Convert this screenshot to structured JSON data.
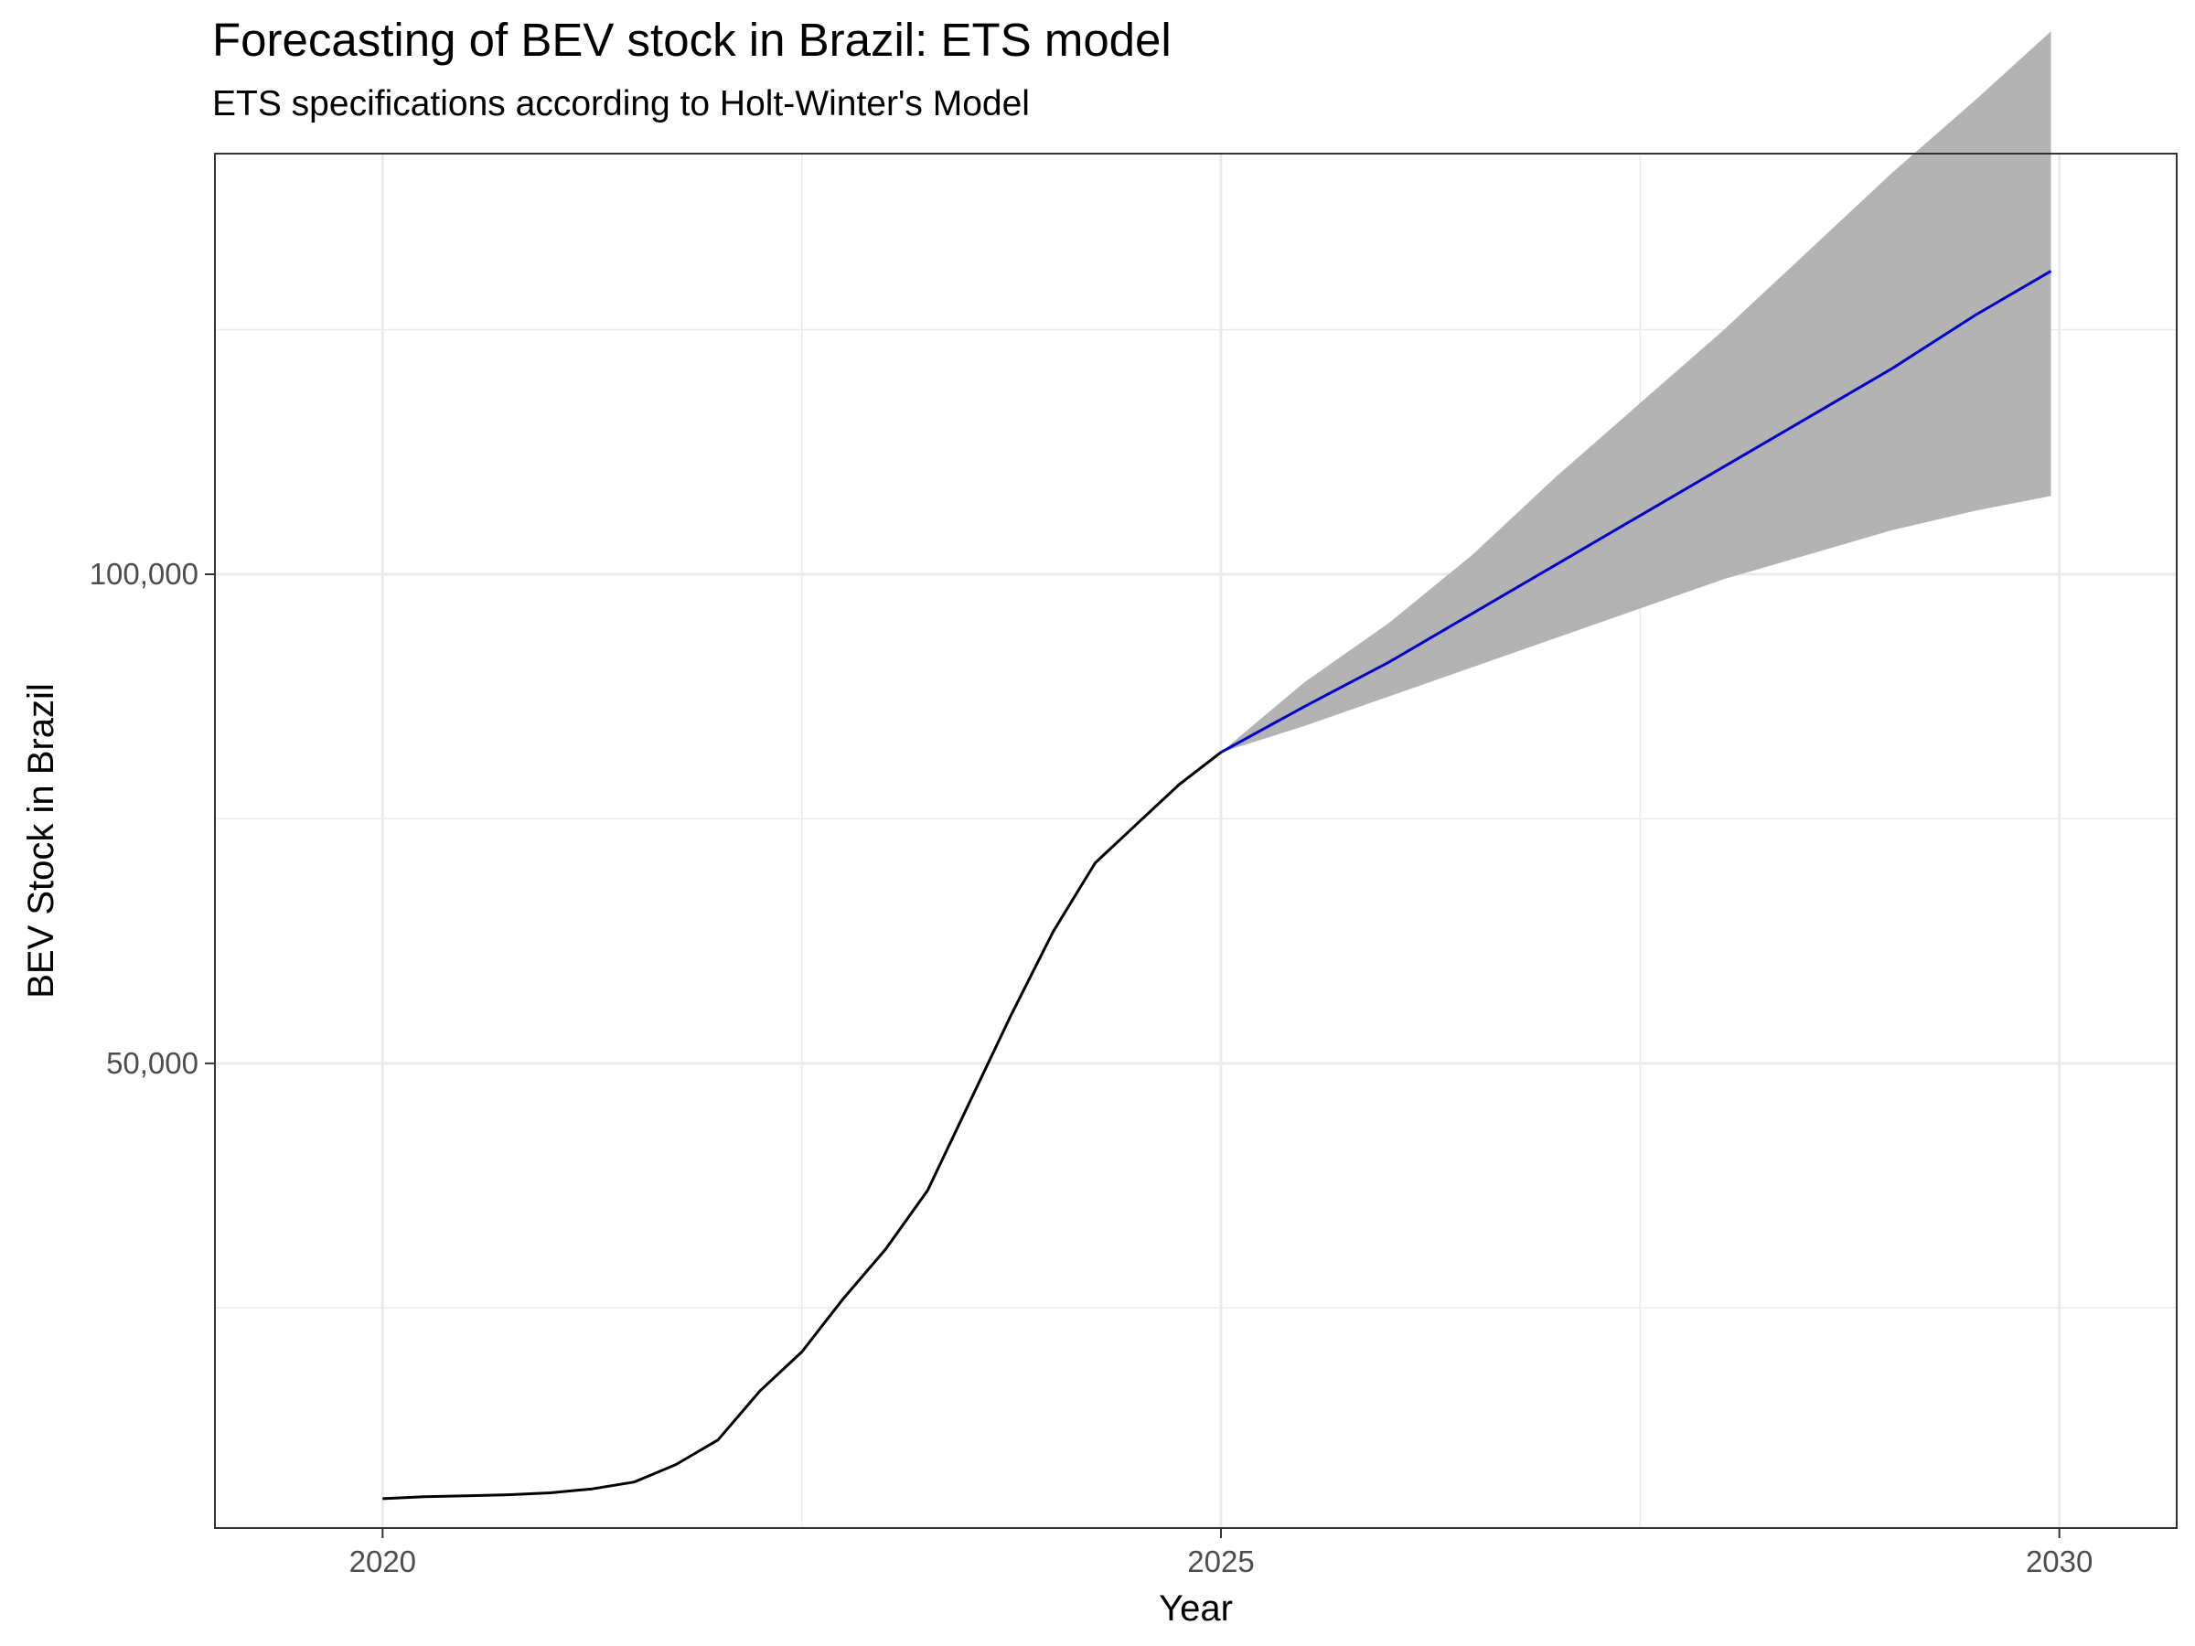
{
  "chart_data": {
    "type": "line",
    "title": "Forecasting of BEV stock in Brazil: ETS model",
    "subtitle": "ETS specifications according to Holt-Winter's Model",
    "xlabel": "Year",
    "ylabel": "BEV Stock in Brazil",
    "xlim": [
      2019.0,
      2030.7
    ],
    "ylim": [
      2500,
      143000
    ],
    "x_ticks": [
      2020,
      2025,
      2030
    ],
    "x_tick_labels": [
      "2020",
      "2025",
      "2030"
    ],
    "y_ticks": [
      50000,
      100000
    ],
    "y_tick_labels": [
      "50,000",
      "100,000"
    ],
    "grid": true,
    "legend": "none",
    "colors": {
      "history": "#000000",
      "forecast": "#0000cd",
      "interval": "#b3b3b3",
      "grid": "#ebebeb",
      "border": "#333333"
    },
    "series": [
      {
        "role": "history",
        "x": [
          2020.0,
          2020.25,
          2020.5,
          2020.75,
          2021.0,
          2021.25,
          2021.5,
          2021.75,
          2022.0,
          2022.25,
          2022.5,
          2022.75,
          2023.0,
          2023.25,
          2023.5,
          2023.75,
          2024.0,
          2024.25,
          2024.5,
          2024.75,
          2025.0
        ],
        "y": [
          5500,
          5700,
          5800,
          5900,
          6100,
          6500,
          7200,
          9000,
          11500,
          16500,
          20500,
          26000,
          31000,
          37000,
          46000,
          55000,
          63500,
          70500,
          74500,
          78500,
          81800
        ]
      },
      {
        "role": "forecast",
        "x": [
          2025.0,
          2025.5,
          2026.0,
          2026.5,
          2027.0,
          2027.5,
          2028.0,
          2028.5,
          2029.0,
          2029.5,
          2029.95
        ],
        "y": [
          81800,
          86500,
          91000,
          96000,
          101000,
          106000,
          111000,
          116000,
          121000,
          126500,
          131000
        ],
        "lower": [
          81800,
          84500,
          87500,
          90500,
          93500,
          96500,
          99500,
          102000,
          104500,
          106500,
          108000
        ],
        "upper": [
          81800,
          89000,
          95000,
          102000,
          110000,
          117500,
          125000,
          133000,
          141000,
          148500,
          155500
        ]
      }
    ]
  }
}
